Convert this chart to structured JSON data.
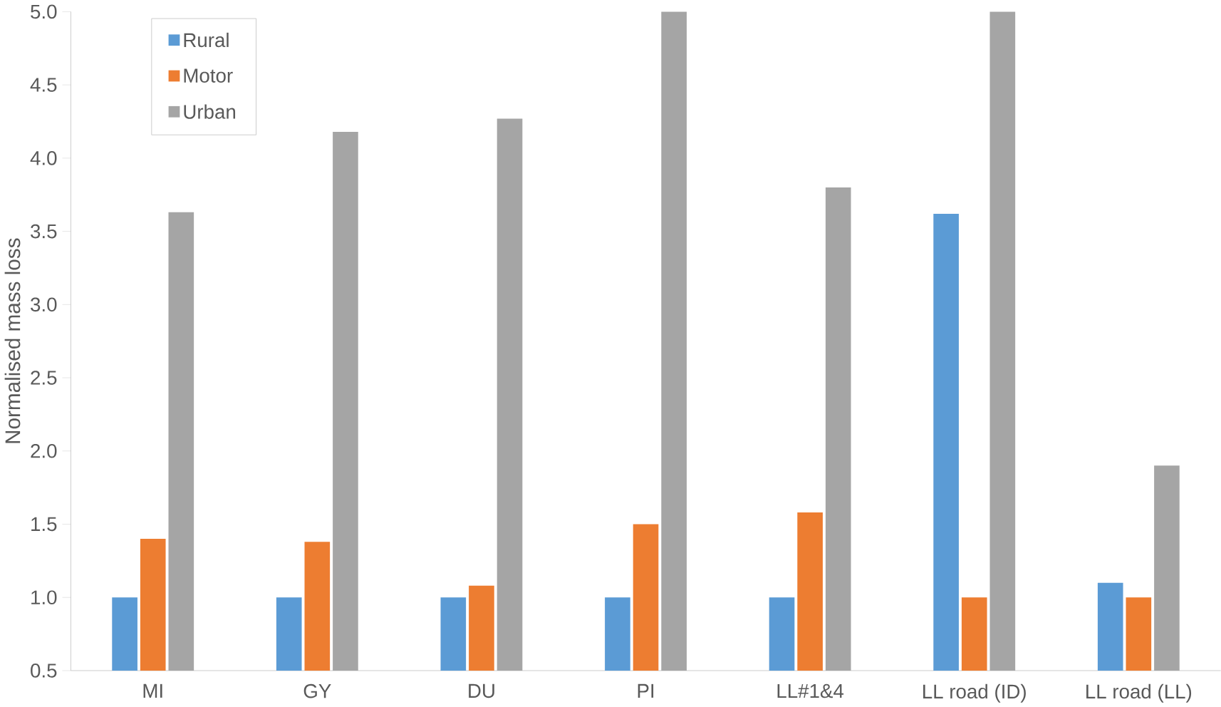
{
  "chart_data": {
    "type": "bar",
    "ylabel": "Normalised mass loss",
    "categories": [
      "MI",
      "GY",
      "DU",
      "PI",
      "LL#1&4",
      "LL road (ID)",
      "LL road (LL)"
    ],
    "series": [
      {
        "name": "Rural",
        "color": "#5b9bd5",
        "values": [
          1.0,
          1.0,
          1.0,
          1.0,
          1.0,
          3.62,
          1.1
        ]
      },
      {
        "name": "Motor",
        "color": "#ed7d31",
        "values": [
          1.4,
          1.38,
          1.08,
          1.5,
          1.58,
          1.0,
          1.0
        ]
      },
      {
        "name": "Urban",
        "color": "#a5a5a5",
        "values": [
          3.63,
          4.18,
          4.27,
          5.0,
          3.8,
          5.0,
          1.9
        ]
      }
    ],
    "ylim": [
      0.5,
      5.0
    ],
    "yticks": [
      0.5,
      {
        "value": 1,
        "label": "1.0"
      },
      1.5,
      {
        "value": 2,
        "label": "2.0"
      },
      2.5,
      {
        "value": 3,
        "label": "3.0"
      },
      3.5,
      {
        "value": 4,
        "label": "4.0"
      },
      4.5,
      {
        "value": 5,
        "label": "5.0"
      }
    ],
    "grid": false,
    "legend": "top left"
  }
}
